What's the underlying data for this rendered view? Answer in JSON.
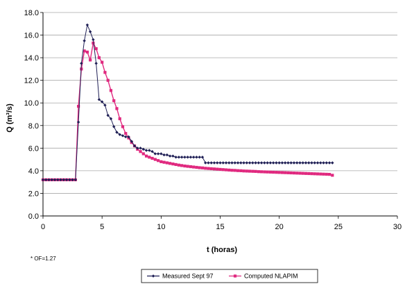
{
  "chart_data": {
    "type": "line",
    "xlabel": "t (horas)",
    "ylabel": "Q (m³/s)",
    "xlim": [
      0,
      30
    ],
    "ylim": [
      0,
      18
    ],
    "xticks": [
      "0",
      "5",
      "10",
      "15",
      "20",
      "25",
      "30"
    ],
    "yticks": [
      "0.0",
      "2.0",
      "4.0",
      "6.0",
      "8.0",
      "10.0",
      "12.0",
      "14.0",
      "16.0",
      "18.0"
    ],
    "grid": "horizontal",
    "note": "* OF=1.27",
    "legend_position": "bottom",
    "colors": {
      "measured": "#1f1f55",
      "computed": "#e0297f",
      "grid": "#a8a8a8"
    },
    "series": [
      {
        "name": "Measured Sept 97",
        "marker": "diamond",
        "x": [
          0.0,
          0.25,
          0.5,
          0.75,
          1.0,
          1.25,
          1.5,
          1.75,
          2.0,
          2.25,
          2.5,
          2.75,
          3.0,
          3.25,
          3.5,
          3.75,
          4.0,
          4.25,
          4.5,
          4.75,
          5.0,
          5.25,
          5.5,
          5.75,
          6.0,
          6.25,
          6.5,
          6.75,
          7.0,
          7.25,
          7.5,
          7.75,
          8.0,
          8.25,
          8.5,
          8.75,
          9.0,
          9.25,
          9.5,
          9.75,
          10.0,
          10.25,
          10.5,
          10.75,
          11.0,
          11.25,
          11.5,
          11.75,
          12.0,
          12.25,
          12.5,
          12.75,
          13.0,
          13.25,
          13.5,
          13.75,
          14.0,
          14.25,
          14.5,
          14.75,
          15.0,
          15.25,
          15.5,
          15.75,
          16.0,
          16.25,
          16.5,
          16.75,
          17.0,
          17.25,
          17.5,
          17.75,
          18.0,
          18.25,
          18.5,
          18.75,
          19.0,
          19.25,
          19.5,
          19.75,
          20.0,
          20.25,
          20.5,
          20.75,
          21.0,
          21.25,
          21.5,
          21.75,
          22.0,
          22.25,
          22.5,
          22.75,
          23.0,
          23.25,
          23.5,
          23.75,
          24.0,
          24.25,
          24.5
        ],
        "values": [
          3.2,
          3.2,
          3.2,
          3.2,
          3.2,
          3.2,
          3.2,
          3.2,
          3.2,
          3.2,
          3.2,
          3.2,
          8.3,
          13.5,
          15.5,
          16.9,
          16.3,
          15.6,
          13.5,
          10.3,
          10.1,
          9.8,
          8.9,
          8.6,
          7.9,
          7.4,
          7.2,
          7.1,
          7.0,
          7.0,
          6.6,
          6.2,
          6.0,
          6.0,
          5.9,
          5.8,
          5.8,
          5.7,
          5.5,
          5.5,
          5.5,
          5.4,
          5.4,
          5.3,
          5.3,
          5.2,
          5.2,
          5.2,
          5.2,
          5.2,
          5.2,
          5.2,
          5.2,
          5.2,
          5.2,
          4.7,
          4.7,
          4.7,
          4.7,
          4.7,
          4.7,
          4.7,
          4.7,
          4.7,
          4.7,
          4.7,
          4.7,
          4.7,
          4.7,
          4.7,
          4.7,
          4.7,
          4.7,
          4.7,
          4.7,
          4.7,
          4.7,
          4.7,
          4.7,
          4.7,
          4.7,
          4.7,
          4.7,
          4.7,
          4.7,
          4.7,
          4.7,
          4.7,
          4.7,
          4.7,
          4.7,
          4.7,
          4.7,
          4.7,
          4.7,
          4.7,
          4.7,
          4.7,
          4.7
        ]
      },
      {
        "name": "Computed NLAPIM",
        "marker": "square",
        "x": [
          0.0,
          0.25,
          0.5,
          0.75,
          1.0,
          1.25,
          1.5,
          1.75,
          2.0,
          2.25,
          2.5,
          2.75,
          3.0,
          3.25,
          3.5,
          3.75,
          4.0,
          4.25,
          4.5,
          4.75,
          5.0,
          5.25,
          5.5,
          5.75,
          6.0,
          6.25,
          6.5,
          6.75,
          7.0,
          7.25,
          7.5,
          7.75,
          8.0,
          8.25,
          8.5,
          8.75,
          9.0,
          9.25,
          9.5,
          9.75,
          10.0,
          10.25,
          10.5,
          10.75,
          11.0,
          11.25,
          11.5,
          11.75,
          12.0,
          12.25,
          12.5,
          12.75,
          13.0,
          13.25,
          13.5,
          13.75,
          14.0,
          14.25,
          14.5,
          14.75,
          15.0,
          15.25,
          15.5,
          15.75,
          16.0,
          16.25,
          16.5,
          16.75,
          17.0,
          17.25,
          17.5,
          17.75,
          18.0,
          18.25,
          18.5,
          18.75,
          19.0,
          19.25,
          19.5,
          19.75,
          20.0,
          20.25,
          20.5,
          20.75,
          21.0,
          21.25,
          21.5,
          21.75,
          22.0,
          22.25,
          22.5,
          22.75,
          23.0,
          23.25,
          23.5,
          23.75,
          24.0,
          24.25,
          24.5
        ],
        "values": [
          3.2,
          3.2,
          3.2,
          3.2,
          3.2,
          3.2,
          3.2,
          3.2,
          3.2,
          3.2,
          3.2,
          3.2,
          9.7,
          13.0,
          14.6,
          14.5,
          13.8,
          15.3,
          14.8,
          14.0,
          13.6,
          12.7,
          12.0,
          11.1,
          10.2,
          9.5,
          8.6,
          7.9,
          7.3,
          6.9,
          6.5,
          6.2,
          5.9,
          5.7,
          5.5,
          5.3,
          5.2,
          5.1,
          5.0,
          4.9,
          4.8,
          4.75,
          4.7,
          4.65,
          4.6,
          4.55,
          4.5,
          4.46,
          4.42,
          4.39,
          4.36,
          4.33,
          4.3,
          4.27,
          4.25,
          4.22,
          4.2,
          4.18,
          4.16,
          4.14,
          4.12,
          4.1,
          4.08,
          4.06,
          4.04,
          4.03,
          4.01,
          4.0,
          3.98,
          3.97,
          3.96,
          3.95,
          3.94,
          3.92,
          3.91,
          3.9,
          3.89,
          3.88,
          3.87,
          3.86,
          3.85,
          3.84,
          3.83,
          3.82,
          3.81,
          3.8,
          3.79,
          3.78,
          3.77,
          3.76,
          3.75,
          3.74,
          3.73,
          3.72,
          3.71,
          3.7,
          3.69,
          3.68,
          3.6
        ]
      }
    ]
  }
}
